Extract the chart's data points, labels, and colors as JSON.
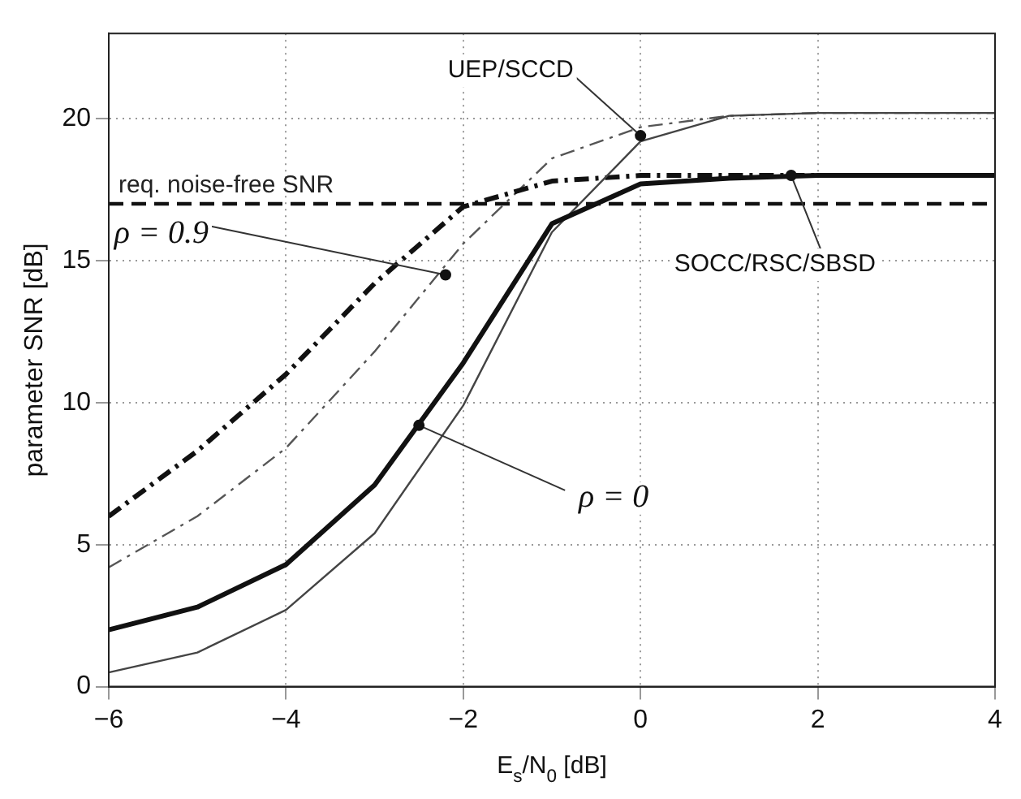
{
  "chart_data": {
    "type": "line",
    "xlabel": "E$_{s}$/N$_{0}$ [dB]",
    "ylabel": "parameter SNR [dB]",
    "x": [
      -6,
      -5,
      -4,
      -3,
      -2,
      -1,
      0,
      1,
      2,
      3,
      4
    ],
    "series": [
      {
        "color": "#111111",
        "line_style": "solid",
        "values": [
          2.0,
          2.8,
          4.3,
          7.1,
          11.4,
          16.3,
          17.7,
          17.9,
          18.0,
          18.0,
          18.0
        ]
      },
      {
        "color": "#444444",
        "line_style": "solid",
        "values": [
          0.5,
          1.2,
          2.7,
          5.4,
          9.9,
          16.0,
          19.2,
          20.1,
          20.2,
          20.2,
          20.2
        ]
      },
      {
        "color": "#111111",
        "line_style": "dashed",
        "values": [
          6.0,
          8.3,
          11.0,
          14.2,
          16.9,
          17.8,
          18.0,
          18.0,
          18.0,
          18.0,
          18.0
        ]
      },
      {
        "color": "#555555",
        "line_style": "dashed",
        "values": [
          4.2,
          6.0,
          8.4,
          11.8,
          15.6,
          18.6,
          19.7,
          20.1,
          20.2,
          20.2,
          20.2
        ]
      }
    ],
    "ref_lines": [
      {
        "axis": "y",
        "value": 17,
        "label": "req. noise-free SNR",
        "color": "#111111",
        "line_style": "dashed"
      }
    ],
    "annotations": [
      {
        "text": "UEP/SCCD",
        "x": 0,
        "y": 19.4
      },
      {
        "text": "SOCC/RSC/SBSD",
        "x": 1.7,
        "y": 18
      },
      {
        "text": "ρ = 0.9",
        "x": -2.2,
        "y": 14.5
      },
      {
        "text": "ρ = 0",
        "x": -2.5,
        "y": 9.2
      }
    ],
    "xlim": [
      -6,
      4
    ],
    "xticks": [
      {
        "value": -6,
        "label": "−6"
      },
      {
        "value": -4,
        "label": "−4"
      },
      {
        "value": -2,
        "label": "−2"
      },
      0,
      2,
      4
    ],
    "ylim": [
      0,
      23
    ],
    "yticks": [
      0,
      5,
      10,
      15,
      20
    ],
    "grid": true,
    "legend": false,
    "marker": "none"
  }
}
